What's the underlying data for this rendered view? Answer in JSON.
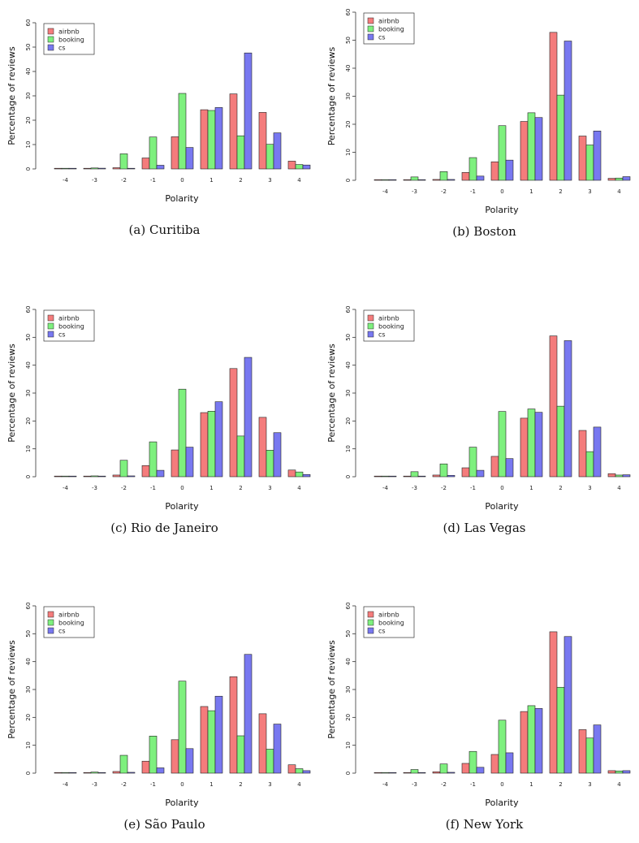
{
  "colors": {
    "airbnb": "#f47c7c",
    "booking": "#7ef07e",
    "cs": "#7878f0"
  },
  "chart_data": [
    {
      "type": "bar",
      "caption": "(a) Curitiba",
      "categories": [
        "-4",
        "-3",
        "-2",
        "-1",
        "0",
        "1",
        "2",
        "3",
        "4"
      ],
      "xlabel": "Polarity",
      "ylabel": "Percentage of reviews",
      "ylim": [
        0,
        60
      ],
      "yticks": [
        "0",
        "10",
        "20",
        "30",
        "40",
        "50",
        "60"
      ],
      "legend_position": "top-left",
      "series": [
        {
          "name": "airbnb",
          "values": [
            0.1,
            0.2,
            0.5,
            4.5,
            13.2,
            24.3,
            30.8,
            23.2,
            3.2
          ]
        },
        {
          "name": "booking",
          "values": [
            0.1,
            0.4,
            6.2,
            13.1,
            31.0,
            24.0,
            13.6,
            10.1,
            1.8
          ]
        },
        {
          "name": "cs",
          "values": [
            0.1,
            0.3,
            0.2,
            1.5,
            8.8,
            25.2,
            47.6,
            14.8,
            1.6
          ]
        }
      ]
    },
    {
      "type": "bar",
      "caption": "(b) Boston",
      "categories": [
        "-4",
        "-3",
        "-2",
        "-1",
        "0",
        "1",
        "2",
        "3",
        "4"
      ],
      "xlabel": "Polarity",
      "ylabel": "Percentage of reviews",
      "ylim": [
        0,
        60
      ],
      "yticks": [
        "0",
        "10",
        "20",
        "30",
        "40",
        "50",
        "60"
      ],
      "legend_position": "top-left",
      "series": [
        {
          "name": "airbnb",
          "values": [
            0.1,
            0.2,
            0.3,
            2.8,
            6.6,
            21.0,
            52.8,
            15.8,
            0.7
          ]
        },
        {
          "name": "booking",
          "values": [
            0.1,
            1.2,
            3.1,
            8.1,
            19.5,
            24.1,
            30.4,
            12.6,
            0.8
          ]
        },
        {
          "name": "cs",
          "values": [
            0.1,
            0.1,
            0.3,
            1.5,
            7.2,
            22.4,
            49.7,
            17.6,
            1.3
          ]
        }
      ]
    },
    {
      "type": "bar",
      "caption": "(c) Rio de Janeiro",
      "categories": [
        "-4",
        "-3",
        "-2",
        "-1",
        "0",
        "1",
        "2",
        "3",
        "4"
      ],
      "xlabel": "Polarity",
      "ylabel": "Percentage of reviews",
      "ylim": [
        0,
        60
      ],
      "yticks": [
        "0",
        "10",
        "20",
        "30",
        "40",
        "50",
        "60"
      ],
      "legend_position": "top-left",
      "series": [
        {
          "name": "airbnb",
          "values": [
            0.1,
            0.2,
            0.6,
            4.0,
            9.6,
            23.0,
            38.8,
            21.3,
            2.4
          ]
        },
        {
          "name": "booking",
          "values": [
            0.1,
            0.3,
            5.9,
            12.5,
            31.4,
            23.5,
            14.6,
            9.5,
            1.7
          ]
        },
        {
          "name": "cs",
          "values": [
            0.1,
            0.2,
            0.3,
            2.3,
            10.6,
            26.9,
            42.8,
            15.8,
            0.8
          ]
        }
      ]
    },
    {
      "type": "bar",
      "caption": "(d) Las Vegas",
      "categories": [
        "-4",
        "-3",
        "-2",
        "-1",
        "0",
        "1",
        "2",
        "3",
        "4"
      ],
      "xlabel": "Polarity",
      "ylabel": "Percentage of reviews",
      "ylim": [
        0,
        60
      ],
      "yticks": [
        "0",
        "10",
        "20",
        "30",
        "40",
        "50",
        "60"
      ],
      "legend_position": "top-left",
      "series": [
        {
          "name": "airbnb",
          "values": [
            0.1,
            0.2,
            0.6,
            3.2,
            7.3,
            21.0,
            50.5,
            16.6,
            1.1
          ]
        },
        {
          "name": "booking",
          "values": [
            0.1,
            1.8,
            4.6,
            10.6,
            23.4,
            24.3,
            25.3,
            9.0,
            0.6
          ]
        },
        {
          "name": "cs",
          "values": [
            0.1,
            0.2,
            0.5,
            2.3,
            6.5,
            23.1,
            48.8,
            17.8,
            0.7
          ]
        }
      ]
    },
    {
      "type": "bar",
      "caption": "(e) São Paulo",
      "categories": [
        "-4",
        "-3",
        "-2",
        "-1",
        "0",
        "1",
        "2",
        "3",
        "4"
      ],
      "xlabel": "Polarity",
      "ylabel": "Percentage of reviews",
      "ylim": [
        0,
        60
      ],
      "yticks": [
        "0",
        "10",
        "20",
        "30",
        "40",
        "50",
        "60"
      ],
      "legend_position": "top-left",
      "series": [
        {
          "name": "airbnb",
          "values": [
            0.1,
            0.2,
            0.6,
            4.3,
            12.0,
            23.9,
            34.6,
            21.3,
            3.0
          ]
        },
        {
          "name": "booking",
          "values": [
            0.1,
            0.4,
            6.4,
            13.3,
            33.0,
            22.4,
            13.4,
            8.6,
            1.6
          ]
        },
        {
          "name": "cs",
          "values": [
            0.1,
            0.2,
            0.3,
            1.9,
            8.8,
            27.6,
            42.6,
            17.6,
            0.9
          ]
        }
      ]
    },
    {
      "type": "bar",
      "caption": "(f) New York",
      "categories": [
        "-4",
        "-3",
        "-2",
        "-1",
        "0",
        "1",
        "2",
        "3",
        "4"
      ],
      "xlabel": "Polarity",
      "ylabel": "Percentage of reviews",
      "ylim": [
        0,
        60
      ],
      "yticks": [
        "0",
        "10",
        "20",
        "30",
        "40",
        "50",
        "60"
      ],
      "legend_position": "top-left",
      "series": [
        {
          "name": "airbnb",
          "values": [
            0.1,
            0.2,
            0.5,
            3.5,
            6.7,
            22.1,
            50.7,
            15.6,
            0.9
          ]
        },
        {
          "name": "booking",
          "values": [
            0.1,
            1.3,
            3.3,
            7.8,
            19.0,
            24.2,
            30.8,
            12.6,
            0.8
          ]
        },
        {
          "name": "cs",
          "values": [
            0.1,
            0.1,
            0.3,
            2.1,
            7.3,
            23.2,
            49.0,
            17.3,
            0.9
          ]
        }
      ]
    }
  ]
}
